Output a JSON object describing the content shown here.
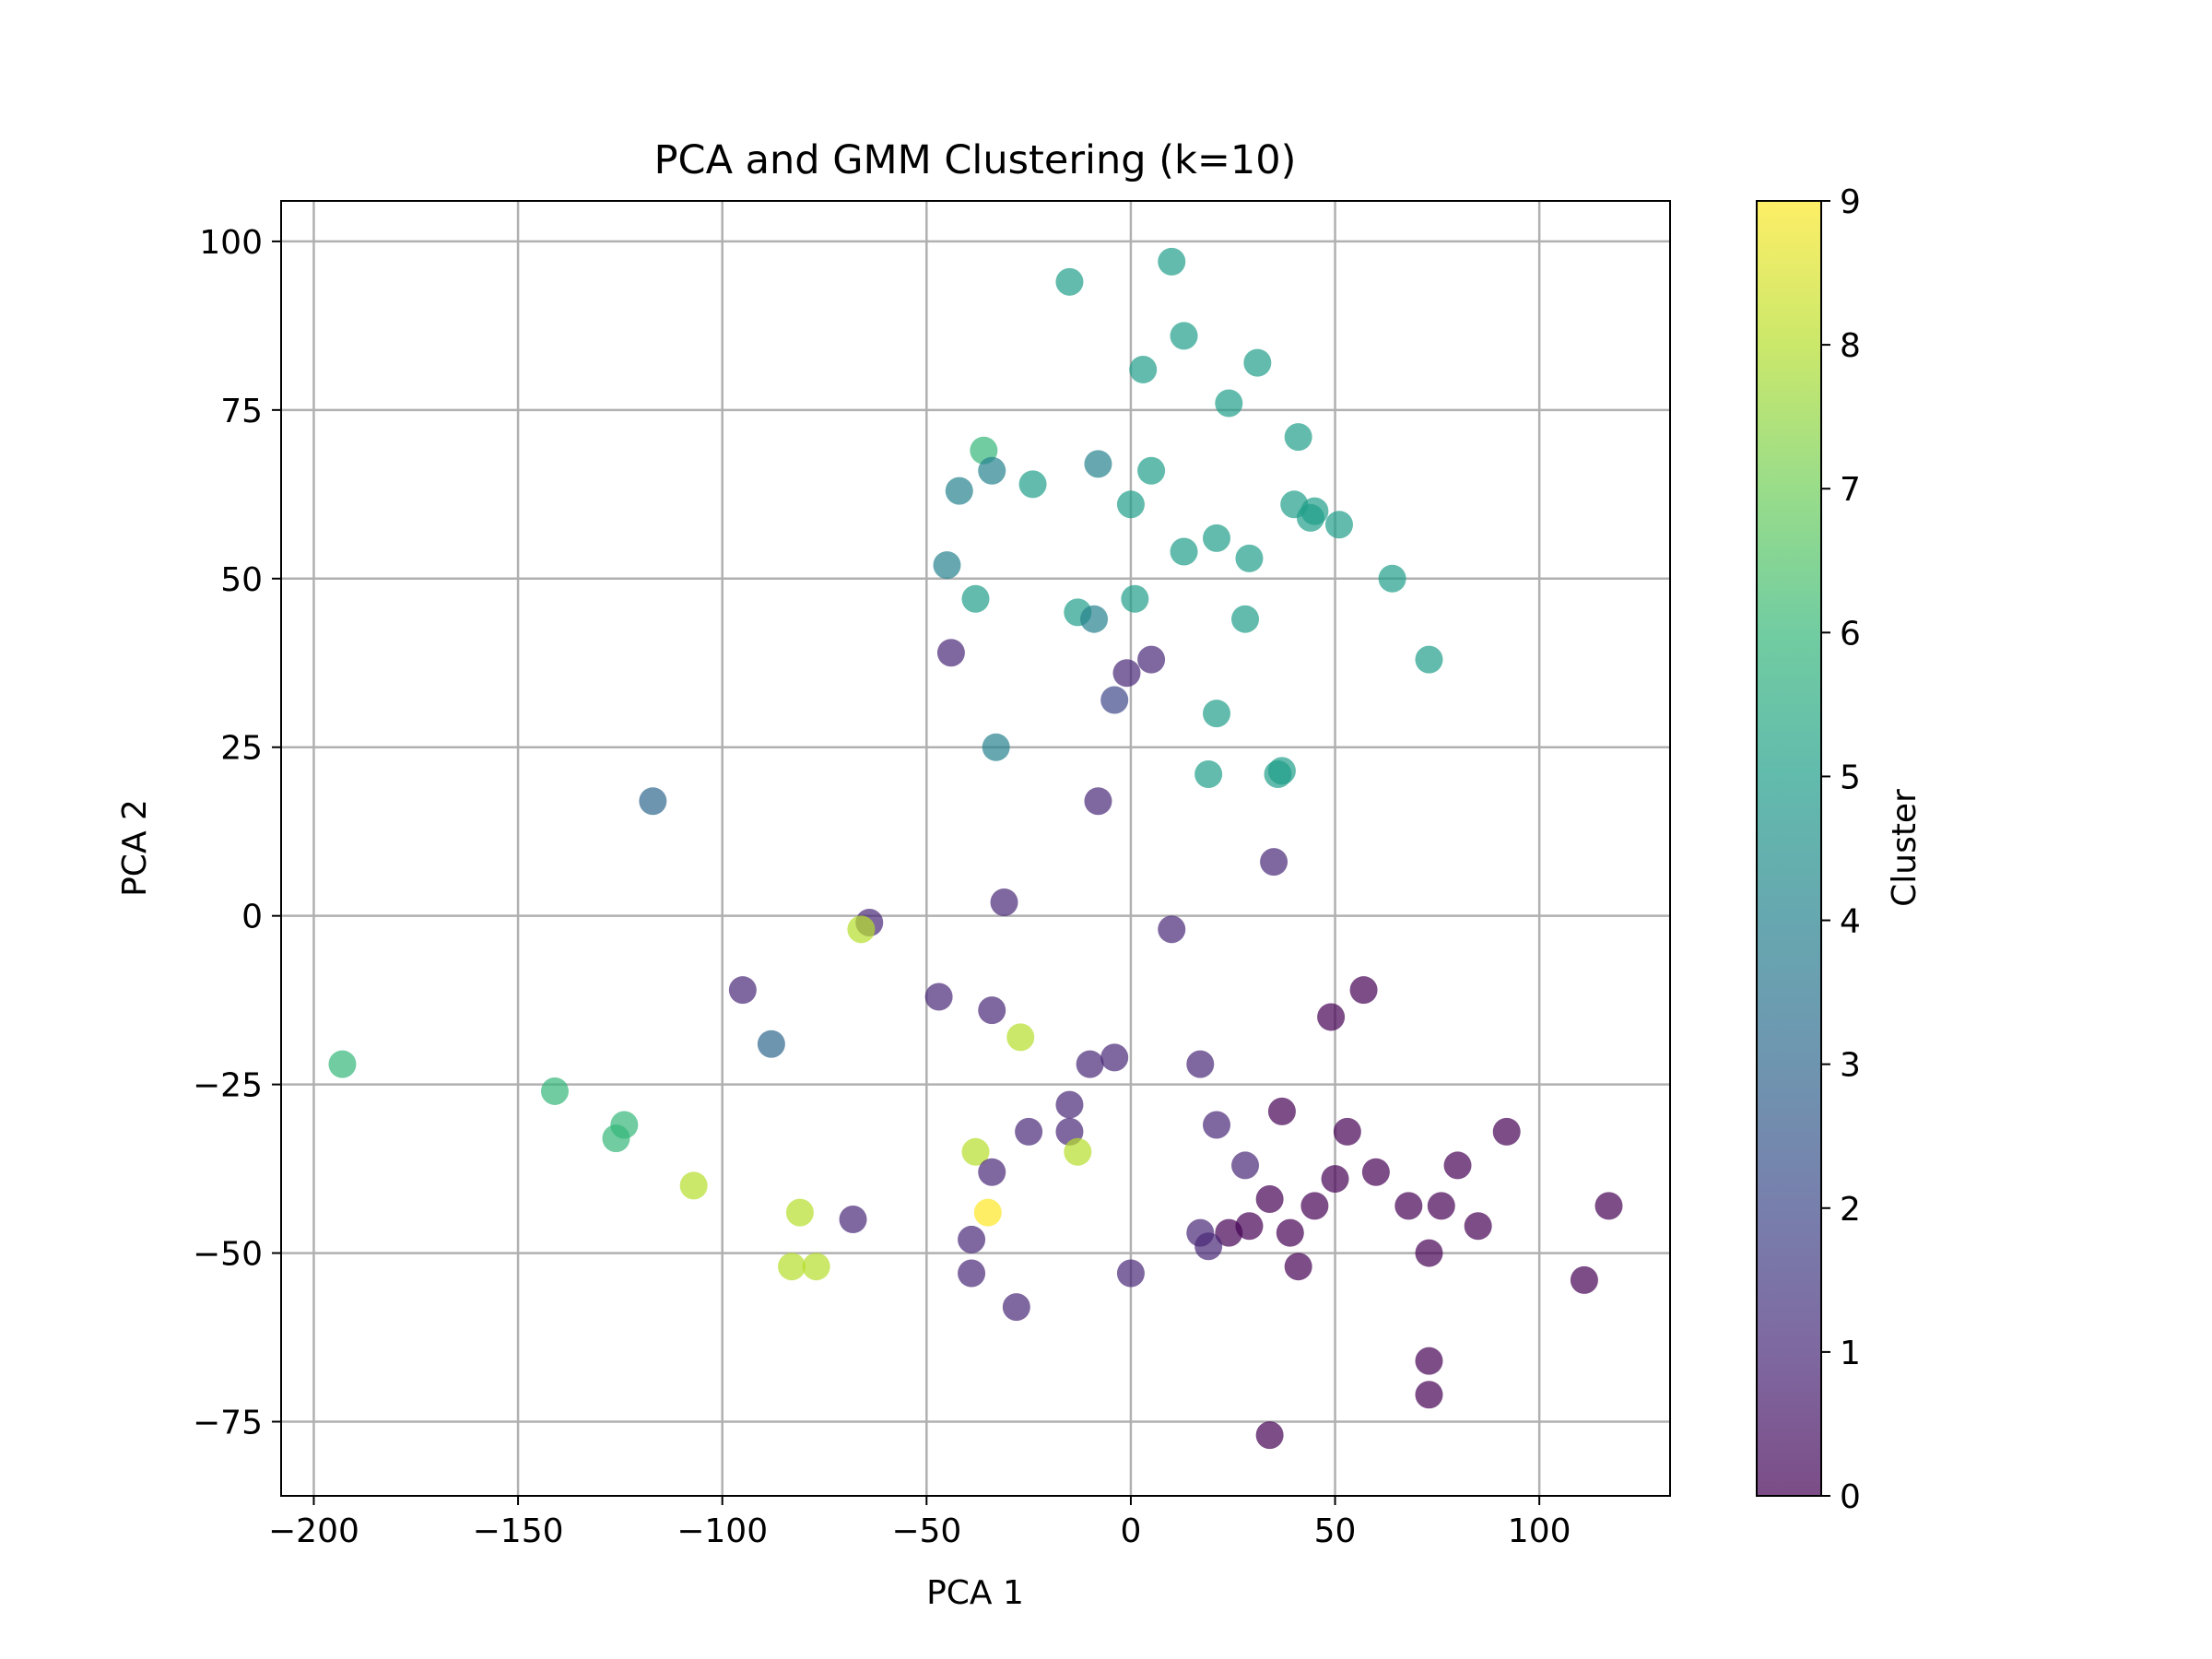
{
  "chart_data": {
    "type": "scatter",
    "title": "PCA and GMM Clustering (k=10)",
    "xlabel": "PCA 1",
    "ylabel": "PCA 2",
    "xlim": [
      -208,
      132
    ],
    "ylim": [
      -86,
      106
    ],
    "xticks": [
      -200,
      -150,
      -100,
      -50,
      0,
      50,
      100
    ],
    "yticks": [
      -75,
      -50,
      -25,
      0,
      25,
      50,
      75,
      100
    ],
    "xtick_labels": [
      "−200",
      "−150",
      "−100",
      "−50",
      "0",
      "50",
      "100"
    ],
    "ytick_labels": [
      "−75",
      "−50",
      "−25",
      "0",
      "25",
      "50",
      "75",
      "100"
    ],
    "grid": true,
    "marker_alpha": 0.7,
    "colormap": "viridis",
    "colorbar": {
      "label": "Cluster",
      "range": [
        0,
        9
      ],
      "ticks": [
        0,
        1,
        2,
        3,
        4,
        5,
        6,
        7,
        8,
        9
      ],
      "tick_labels": [
        "0",
        "1",
        "2",
        "3",
        "4",
        "5",
        "6",
        "7",
        "8",
        "9"
      ],
      "stops": [
        "#440154",
        "#482878",
        "#3e4989",
        "#31688e",
        "#26828e",
        "#1f9e89",
        "#35b779",
        "#6ece58",
        "#b5de2b",
        "#fde725"
      ]
    },
    "points": [
      {
        "x": 10,
        "y": 97,
        "cluster": 5
      },
      {
        "x": -15,
        "y": 94,
        "cluster": 5
      },
      {
        "x": 13,
        "y": 86,
        "cluster": 5
      },
      {
        "x": 31,
        "y": 82,
        "cluster": 5
      },
      {
        "x": 3,
        "y": 81,
        "cluster": 5
      },
      {
        "x": 24,
        "y": 76,
        "cluster": 5
      },
      {
        "x": 41,
        "y": 71,
        "cluster": 5
      },
      {
        "x": -36,
        "y": 69,
        "cluster": 6
      },
      {
        "x": -34,
        "y": 66,
        "cluster": 4
      },
      {
        "x": -8,
        "y": 67,
        "cluster": 4
      },
      {
        "x": 5,
        "y": 66,
        "cluster": 5
      },
      {
        "x": -24,
        "y": 64,
        "cluster": 5
      },
      {
        "x": -42,
        "y": 63,
        "cluster": 4
      },
      {
        "x": 0,
        "y": 61,
        "cluster": 5
      },
      {
        "x": 40,
        "y": 61,
        "cluster": 5
      },
      {
        "x": 44,
        "y": 59,
        "cluster": 5
      },
      {
        "x": 45,
        "y": 60,
        "cluster": 5
      },
      {
        "x": 51,
        "y": 58,
        "cluster": 5
      },
      {
        "x": 21,
        "y": 56,
        "cluster": 5
      },
      {
        "x": 13,
        "y": 54,
        "cluster": 5
      },
      {
        "x": 29,
        "y": 53,
        "cluster": 5
      },
      {
        "x": -45,
        "y": 52,
        "cluster": 4
      },
      {
        "x": 64,
        "y": 50,
        "cluster": 5
      },
      {
        "x": -38,
        "y": 47,
        "cluster": 5
      },
      {
        "x": 1,
        "y": 47,
        "cluster": 5
      },
      {
        "x": -13,
        "y": 45,
        "cluster": 5
      },
      {
        "x": -9,
        "y": 44,
        "cluster": 4
      },
      {
        "x": 28,
        "y": 44,
        "cluster": 5
      },
      {
        "x": -44,
        "y": 39,
        "cluster": 1
      },
      {
        "x": 5,
        "y": 38,
        "cluster": 1
      },
      {
        "x": 73,
        "y": 38,
        "cluster": 5
      },
      {
        "x": -1,
        "y": 36,
        "cluster": 1
      },
      {
        "x": -4,
        "y": 32,
        "cluster": 2
      },
      {
        "x": 21,
        "y": 30,
        "cluster": 5
      },
      {
        "x": -33,
        "y": 25,
        "cluster": 4
      },
      {
        "x": 19,
        "y": 21,
        "cluster": 5
      },
      {
        "x": 36,
        "y": 21,
        "cluster": 5
      },
      {
        "x": 37,
        "y": 21.5,
        "cluster": 5
      },
      {
        "x": -117,
        "y": 17,
        "cluster": 3
      },
      {
        "x": -8,
        "y": 17,
        "cluster": 1
      },
      {
        "x": 35,
        "y": 8,
        "cluster": 1
      },
      {
        "x": -31,
        "y": 2,
        "cluster": 1
      },
      {
        "x": -64,
        "y": -1,
        "cluster": 1
      },
      {
        "x": -66,
        "y": -2,
        "cluster": 8
      },
      {
        "x": 10,
        "y": -2,
        "cluster": 1
      },
      {
        "x": -95,
        "y": -11,
        "cluster": 1
      },
      {
        "x": 57,
        "y": -11,
        "cluster": 0
      },
      {
        "x": -47,
        "y": -12,
        "cluster": 1
      },
      {
        "x": -34,
        "y": -14,
        "cluster": 1
      },
      {
        "x": 49,
        "y": -15,
        "cluster": 0
      },
      {
        "x": -27,
        "y": -18,
        "cluster": 8
      },
      {
        "x": -88,
        "y": -19,
        "cluster": 3
      },
      {
        "x": -4,
        "y": -21,
        "cluster": 1
      },
      {
        "x": -10,
        "y": -22,
        "cluster": 1
      },
      {
        "x": 17,
        "y": -22,
        "cluster": 1
      },
      {
        "x": -193,
        "y": -22,
        "cluster": 6
      },
      {
        "x": -141,
        "y": -26,
        "cluster": 6
      },
      {
        "x": -15,
        "y": -28,
        "cluster": 1
      },
      {
        "x": 37,
        "y": -29,
        "cluster": 0
      },
      {
        "x": -124,
        "y": -31,
        "cluster": 6
      },
      {
        "x": 21,
        "y": -31,
        "cluster": 1
      },
      {
        "x": -15,
        "y": -32,
        "cluster": 1
      },
      {
        "x": -25,
        "y": -32,
        "cluster": 1
      },
      {
        "x": 53,
        "y": -32,
        "cluster": 0
      },
      {
        "x": 92,
        "y": -32,
        "cluster": 0
      },
      {
        "x": -126,
        "y": -33,
        "cluster": 6
      },
      {
        "x": -13,
        "y": -35,
        "cluster": 8
      },
      {
        "x": -38,
        "y": -35,
        "cluster": 8
      },
      {
        "x": 28,
        "y": -37,
        "cluster": 1
      },
      {
        "x": 80,
        "y": -37,
        "cluster": 0
      },
      {
        "x": -34,
        "y": -38,
        "cluster": 1
      },
      {
        "x": 60,
        "y": -38,
        "cluster": 0
      },
      {
        "x": 50,
        "y": -39,
        "cluster": 0
      },
      {
        "x": -107,
        "y": -40,
        "cluster": 8
      },
      {
        "x": 34,
        "y": -42,
        "cluster": 0
      },
      {
        "x": 45,
        "y": -43,
        "cluster": 0
      },
      {
        "x": 68,
        "y": -43,
        "cluster": 0
      },
      {
        "x": 76,
        "y": -43,
        "cluster": 0
      },
      {
        "x": 117,
        "y": -43,
        "cluster": 0
      },
      {
        "x": -35,
        "y": -44,
        "cluster": 9
      },
      {
        "x": -81,
        "y": -44,
        "cluster": 8
      },
      {
        "x": -68,
        "y": -45,
        "cluster": 1
      },
      {
        "x": 85,
        "y": -46,
        "cluster": 0
      },
      {
        "x": 29,
        "y": -46,
        "cluster": 0
      },
      {
        "x": 24,
        "y": -47,
        "cluster": 0
      },
      {
        "x": 39,
        "y": -47,
        "cluster": 0
      },
      {
        "x": 17,
        "y": -47,
        "cluster": 1
      },
      {
        "x": -39,
        "y": -48,
        "cluster": 1
      },
      {
        "x": 19,
        "y": -49,
        "cluster": 1
      },
      {
        "x": 73,
        "y": -50,
        "cluster": 0
      },
      {
        "x": -83,
        "y": -52,
        "cluster": 8
      },
      {
        "x": -77,
        "y": -52,
        "cluster": 8
      },
      {
        "x": 41,
        "y": -52,
        "cluster": 0
      },
      {
        "x": -39,
        "y": -53,
        "cluster": 1
      },
      {
        "x": 0,
        "y": -53,
        "cluster": 1
      },
      {
        "x": 111,
        "y": -54,
        "cluster": 0
      },
      {
        "x": -28,
        "y": -58,
        "cluster": 1
      },
      {
        "x": 73,
        "y": -66,
        "cluster": 0
      },
      {
        "x": 73,
        "y": -71,
        "cluster": 0
      },
      {
        "x": 34,
        "y": -77,
        "cluster": 0
      }
    ]
  }
}
